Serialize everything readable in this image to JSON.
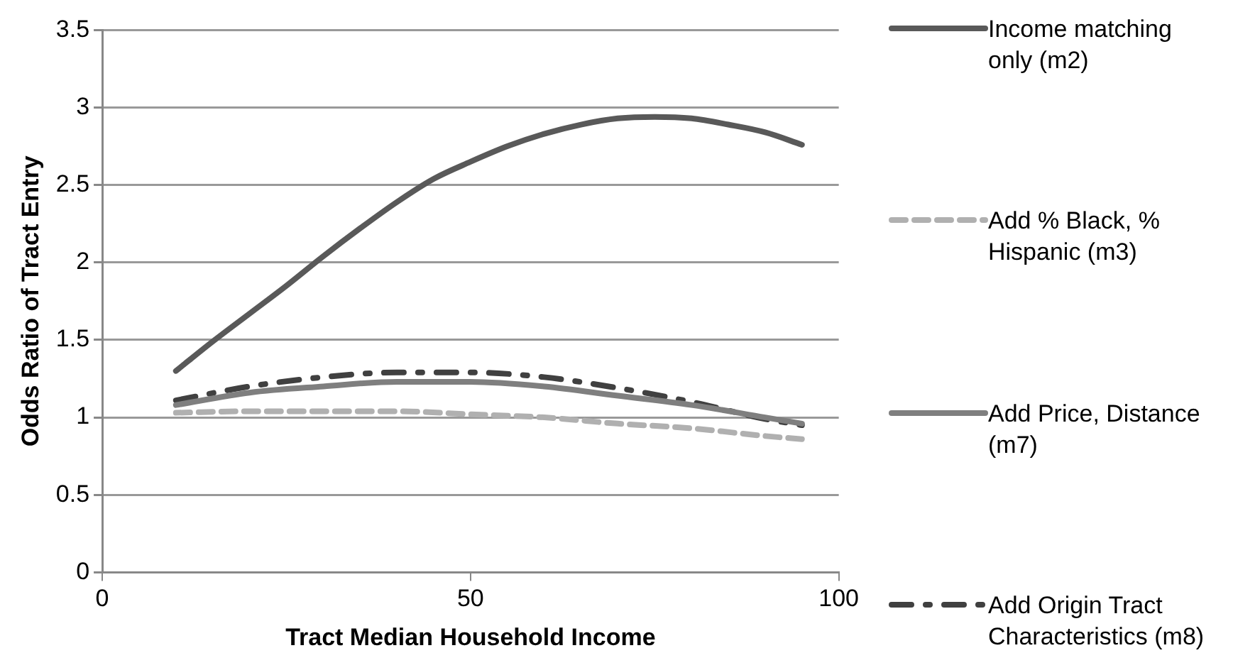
{
  "chart_data": {
    "type": "line",
    "xlabel": "Tract Median Household Income",
    "ylabel": "Odds Ratio of Tract Entry",
    "xlim": [
      0,
      100
    ],
    "xticks": [
      0,
      50,
      100
    ],
    "ylim": [
      0,
      3.5
    ],
    "yticks": [
      0,
      0.5,
      1,
      1.5,
      2,
      2.5,
      3,
      3.5
    ],
    "grid": "y",
    "legend": "right",
    "marker": "none",
    "series": [
      {
        "name": "Income matching only (m2)",
        "color": "#595959",
        "line_style": "solid",
        "x": [
          10,
          15,
          20,
          25,
          30,
          35,
          40,
          45,
          50,
          55,
          60,
          65,
          70,
          75,
          80,
          85,
          90,
          95
        ],
        "values": [
          1.3,
          1.49,
          1.67,
          1.85,
          2.04,
          2.22,
          2.39,
          2.54,
          2.65,
          2.75,
          2.83,
          2.89,
          2.93,
          2.94,
          2.93,
          2.89,
          2.84,
          2.76
        ]
      },
      {
        "name": "Add % Black, % Hispanic (m3)",
        "color": "#b0b0b0",
        "line_style": "dashed",
        "x": [
          10,
          20,
          30,
          40,
          50,
          60,
          70,
          80,
          90,
          95
        ],
        "values": [
          1.03,
          1.04,
          1.04,
          1.04,
          1.02,
          1.0,
          0.96,
          0.93,
          0.88,
          0.86
        ]
      },
      {
        "name": "Add Price, Distance (m7)",
        "color": "#7f7f7f",
        "line_style": "solid",
        "x": [
          10,
          20,
          30,
          40,
          50,
          60,
          70,
          80,
          90,
          95
        ],
        "values": [
          1.08,
          1.16,
          1.2,
          1.23,
          1.23,
          1.2,
          1.14,
          1.08,
          1.0,
          0.96
        ]
      },
      {
        "name": "Add Origin Tract Characteristics (m8)",
        "color": "#404040",
        "line_style": "dash-dot",
        "x": [
          10,
          20,
          30,
          40,
          50,
          60,
          70,
          80,
          90,
          95
        ],
        "values": [
          1.11,
          1.2,
          1.26,
          1.29,
          1.29,
          1.26,
          1.19,
          1.1,
          0.99,
          0.95
        ]
      }
    ]
  }
}
